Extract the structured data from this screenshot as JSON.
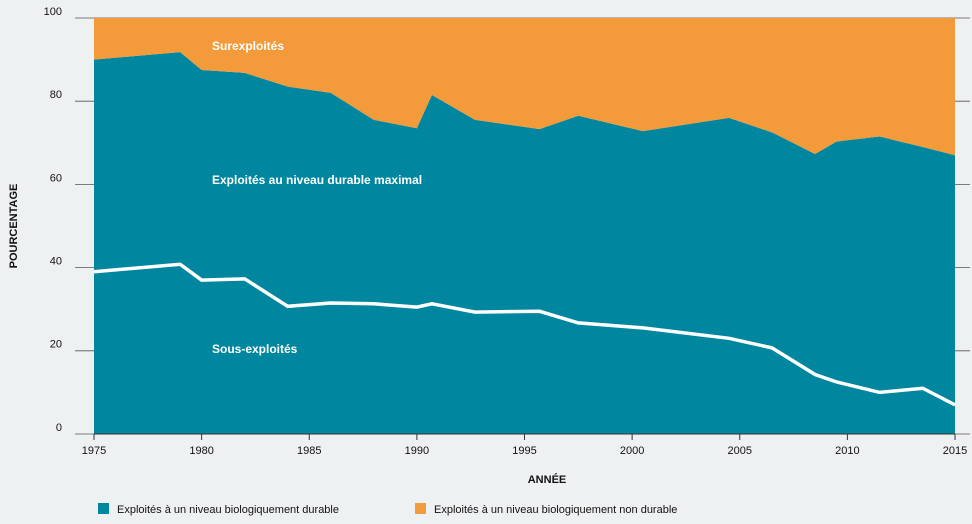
{
  "chart_data": {
    "type": "stacked_area",
    "x": [
      1975,
      1979,
      1980,
      1982,
      1984,
      1986,
      1988,
      1990,
      1990.7,
      1992.7,
      1995.7,
      1997.5,
      2000.5,
      2004.5,
      2006.5,
      2008.5,
      2009.5,
      2011.5,
      2013.5,
      2015
    ],
    "series": [
      {
        "name": "Exploités à un niveau biologiquement durable",
        "color": "#00869e",
        "values": [
          90,
          91.8,
          87.5,
          86.8,
          83.5,
          82,
          75.5,
          73.5,
          81.5,
          75.5,
          73.3,
          76.5,
          72.8,
          76,
          72.5,
          67.3,
          70.3,
          71.5,
          69,
          67
        ]
      },
      {
        "name": "Exploités à un niveau biologiquement non durable",
        "color": "#f39a3a",
        "values": [
          10,
          8.2,
          12.5,
          13.2,
          16.5,
          18,
          24.5,
          26.5,
          18.5,
          24.5,
          26.7,
          23.5,
          27.2,
          24,
          27.5,
          32.7,
          29.7,
          28.5,
          31,
          33
        ]
      }
    ],
    "line": {
      "color": "#ffffff",
      "values": [
        39,
        40.8,
        37,
        37.3,
        30.7,
        31.5,
        31.3,
        30.5,
        31.3,
        29.3,
        29.5,
        26.7,
        25.5,
        23,
        20.7,
        14.3,
        12.5,
        10,
        11,
        7
      ]
    },
    "annotations": [
      "Surexploités",
      "Exploités au niveau durable maximal",
      "Sous-exploités"
    ],
    "xlabel": "ANNÉE",
    "ylabel": "POURCENTAGE",
    "xlim": [
      1975,
      2015
    ],
    "xticks": [
      1975,
      1980,
      1985,
      1990,
      1995,
      2000,
      2005,
      2010,
      2015
    ],
    "ylim": [
      0,
      100
    ],
    "yticks": [
      0,
      20,
      40,
      60,
      80,
      100
    ],
    "grid": true
  }
}
